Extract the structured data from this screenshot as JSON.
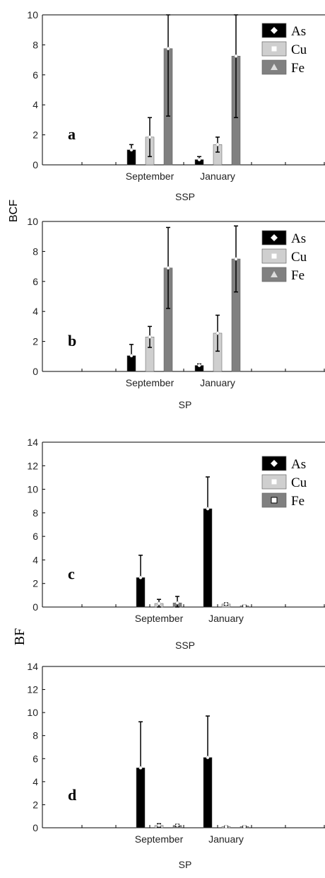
{
  "chart_data": [
    {
      "type": "bar",
      "panel_label": "a",
      "xlabel": "SSP",
      "ylim": [
        0,
        10
      ],
      "yticks": [
        0,
        2,
        4,
        6,
        8,
        10
      ],
      "categories": [
        "September",
        "January"
      ],
      "series": [
        {
          "name": "As",
          "color": "#000000",
          "values": [
            1.0,
            0.35
          ],
          "errors": [
            0.35,
            0.2
          ]
        },
        {
          "name": "Cu",
          "color": "#cfcfcf",
          "values": [
            1.85,
            1.35
          ],
          "errors": [
            1.3,
            0.5
          ]
        },
        {
          "name": "Fe",
          "color": "#808080",
          "values": [
            7.75,
            7.25
          ],
          "errors": [
            4.5,
            4.1
          ]
        }
      ],
      "legend_position": "top-right",
      "legend_markers": [
        "diamond",
        "square",
        "triangle"
      ]
    },
    {
      "type": "bar",
      "panel_label": "b",
      "xlabel": "SP",
      "ylim": [
        0,
        10
      ],
      "yticks": [
        0,
        2,
        4,
        6,
        8,
        10
      ],
      "categories": [
        "September",
        "January"
      ],
      "series": [
        {
          "name": "As",
          "color": "#000000",
          "values": [
            1.05,
            0.4
          ],
          "errors": [
            0.75,
            0.1
          ]
        },
        {
          "name": "Cu",
          "color": "#cfcfcf",
          "values": [
            2.3,
            2.55
          ],
          "errors": [
            0.7,
            1.2
          ]
        },
        {
          "name": "Fe",
          "color": "#808080",
          "values": [
            6.9,
            7.5
          ],
          "errors": [
            2.7,
            2.2
          ]
        }
      ],
      "legend_position": "top-right",
      "legend_markers": [
        "diamond",
        "square",
        "triangle"
      ]
    },
    {
      "type": "bar",
      "panel_label": "c",
      "xlabel": "SSP",
      "ylim": [
        0,
        14
      ],
      "yticks": [
        0,
        2,
        4,
        6,
        8,
        10,
        12,
        14
      ],
      "categories": [
        "September",
        "January"
      ],
      "series": [
        {
          "name": "As",
          "color": "#000000",
          "values": [
            2.5,
            8.35
          ],
          "errors": [
            1.9,
            2.7
          ]
        },
        {
          "name": "Cu",
          "color": "#cfcfcf",
          "values": [
            0.3,
            0.25
          ],
          "errors": [
            0.35,
            0.1
          ]
        },
        {
          "name": "Fe",
          "color": "#808080",
          "values": [
            0.35,
            0.1
          ],
          "errors": [
            0.55,
            0.05
          ]
        }
      ],
      "legend_position": "top-right",
      "legend_markers": [
        "diamond",
        "square",
        "open-square"
      ]
    },
    {
      "type": "bar",
      "panel_label": "d",
      "xlabel": "SP",
      "ylim": [
        0,
        14
      ],
      "yticks": [
        0,
        2,
        4,
        6,
        8,
        10,
        12,
        14
      ],
      "categories": [
        "September",
        "January"
      ],
      "series": [
        {
          "name": "As",
          "color": "#000000",
          "values": [
            5.2,
            6.1
          ],
          "errors": [
            4.0,
            3.6
          ]
        },
        {
          "name": "Cu",
          "color": "#cfcfcf",
          "values": [
            0.2,
            0.1
          ],
          "errors": [
            0.15,
            0.05
          ]
        },
        {
          "name": "Fe",
          "color": "#808080",
          "values": [
            0.2,
            0.1
          ],
          "errors": [
            0.1,
            0.05
          ]
        }
      ],
      "legend_position": "top-right",
      "legend_markers": [
        "diamond",
        "square",
        "open-square"
      ],
      "show_legend": false
    }
  ],
  "shared_ylabels": [
    "BCF",
    "BF"
  ]
}
